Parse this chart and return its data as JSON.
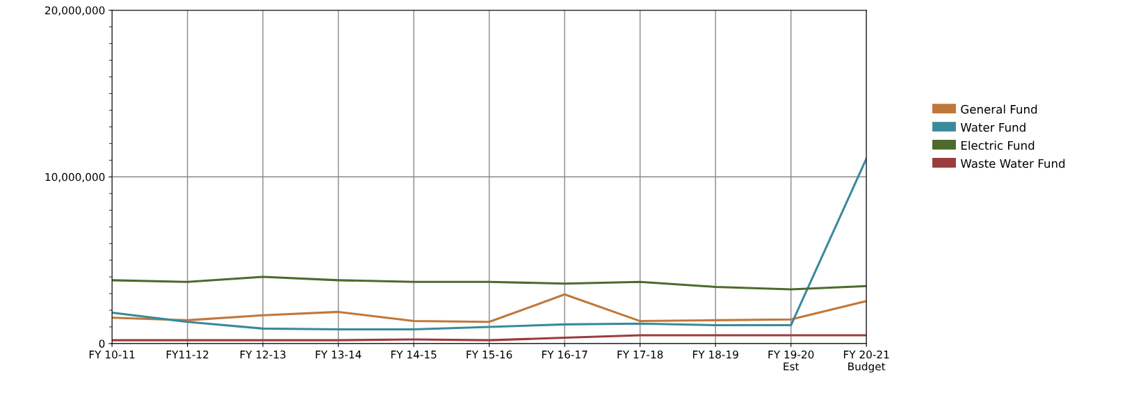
{
  "chart_data": {
    "type": "line",
    "categories": [
      "FY 10-11",
      "FY11-12",
      "FY 12-13",
      "FY 13-14",
      "FY 14-15",
      "FY 15-16",
      "FY 16-17",
      "FY 17-18",
      "FY 18-19",
      "FY 19-20\nEst",
      "FY 20-21\nBudget"
    ],
    "series": [
      {
        "name": "General Fund",
        "color": "#c0783a",
        "values": [
          1550000,
          1400000,
          1700000,
          1900000,
          1350000,
          1300000,
          2950000,
          1350000,
          1400000,
          1450000,
          2550000
        ]
      },
      {
        "name": "Water Fund",
        "color": "#3a8a9c",
        "values": [
          1850000,
          1300000,
          900000,
          850000,
          850000,
          1000000,
          1150000,
          1200000,
          1100000,
          1100000,
          11100000
        ]
      },
      {
        "name": "Electric Fund",
        "color": "#4e6a2c",
        "values": [
          3800000,
          3700000,
          4000000,
          3800000,
          3700000,
          3700000,
          3600000,
          3700000,
          3400000,
          3250000,
          3450000
        ]
      },
      {
        "name": "Waste Water Fund",
        "color": "#9c3c3c",
        "values": [
          200000,
          200000,
          200000,
          200000,
          250000,
          200000,
          350000,
          500000,
          500000,
          500000,
          500000
        ]
      }
    ],
    "ylim": [
      0,
      20000000
    ],
    "yticks": [
      {
        "value": 0,
        "label": "0"
      },
      {
        "value": 10000000,
        "label": "10,000,000"
      },
      {
        "value": 20000000,
        "label": "20,000,000"
      }
    ],
    "grid": true,
    "legend": "right",
    "marker": "none",
    "line_style": "solid"
  }
}
